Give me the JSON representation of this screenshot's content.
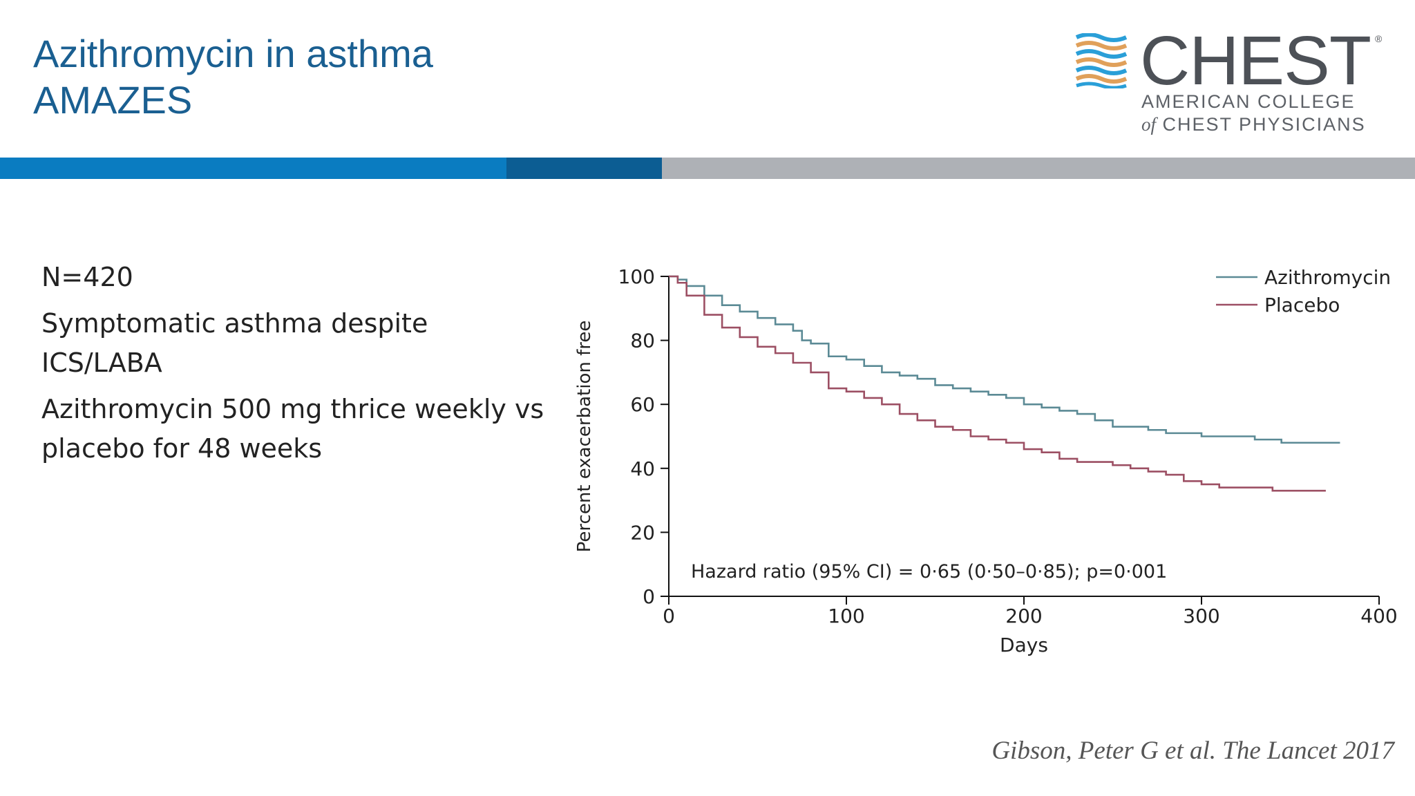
{
  "slide": {
    "title_line1": "Azithromycin in asthma",
    "title_line2": "AMAZES",
    "bullets": [
      "N=420",
      "Symptomatic asthma despite ICS/LABA",
      "Azithromycin 500 mg thrice weekly vs placebo for 48 weeks"
    ],
    "citation": "Gibson, Peter G et al. The Lancet 2017"
  },
  "logo": {
    "wordmark": "CHEST",
    "registered": "®",
    "line1": "AMERICAN COLLEGE",
    "line2_of": "of",
    "line2_rest": "CHEST PHYSICIANS",
    "colors": {
      "blue": "#2a9fd8",
      "orange": "#e0a05a",
      "gray": "#4d5157"
    },
    "icon": "stacked-wave-icon"
  },
  "colors": {
    "title": "#1a5f91",
    "bar_blue": "#0a7cc1",
    "bar_dark_blue": "#0c5d93",
    "bar_gray": "#aeb1b6",
    "azithromycin": "#5b8a95",
    "placebo": "#9c4f63",
    "axis": "#111111"
  },
  "chart_data": {
    "type": "line",
    "xlabel": "Days",
    "ylabel": "Percent exacerbation free",
    "xlim": [
      0,
      400
    ],
    "ylim": [
      0,
      100
    ],
    "xticks": [
      0,
      100,
      200,
      300,
      400
    ],
    "yticks": [
      0,
      20,
      40,
      60,
      80,
      100
    ],
    "grid": false,
    "legend_position": "top-right",
    "annotation": "Hazard ratio (95% CI) = 0·65 (0·50–0·85); p=0·001",
    "series": [
      {
        "name": "Azithromycin",
        "color": "#5b8a95",
        "x": [
          0,
          5,
          10,
          20,
          30,
          40,
          50,
          60,
          70,
          75,
          80,
          90,
          100,
          110,
          120,
          130,
          140,
          150,
          160,
          170,
          180,
          190,
          200,
          210,
          220,
          230,
          240,
          250,
          260,
          270,
          280,
          290,
          300,
          310,
          320,
          330,
          340,
          345,
          350,
          360,
          370,
          378
        ],
        "y": [
          100,
          99,
          97,
          94,
          91,
          89,
          87,
          85,
          83,
          80,
          79,
          75,
          74,
          72,
          70,
          69,
          68,
          66,
          65,
          64,
          63,
          62,
          60,
          59,
          58,
          57,
          55,
          53,
          53,
          52,
          51,
          51,
          50,
          50,
          50,
          49,
          49,
          48,
          48,
          48,
          48,
          48
        ]
      },
      {
        "name": "Placebo",
        "color": "#9c4f63",
        "x": [
          0,
          5,
          10,
          20,
          30,
          40,
          50,
          60,
          70,
          80,
          90,
          100,
          110,
          120,
          130,
          140,
          150,
          160,
          170,
          180,
          190,
          200,
          210,
          220,
          230,
          240,
          250,
          260,
          270,
          280,
          290,
          300,
          310,
          320,
          330,
          340,
          350,
          360,
          370
        ],
        "y": [
          100,
          98,
          94,
          88,
          84,
          81,
          78,
          76,
          73,
          70,
          65,
          64,
          62,
          60,
          57,
          55,
          53,
          52,
          50,
          49,
          48,
          46,
          45,
          43,
          42,
          42,
          41,
          40,
          39,
          38,
          36,
          35,
          34,
          34,
          34,
          33,
          33,
          33,
          33
        ]
      }
    ]
  }
}
